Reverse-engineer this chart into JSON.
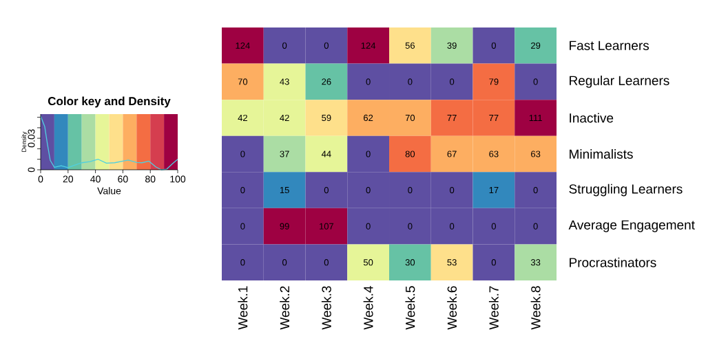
{
  "chart_data": [
    {
      "type": "line",
      "title": "Color key and Density",
      "xlabel": "Value",
      "ylabel": "Density",
      "xlim": [
        0,
        100
      ],
      "xticks": [
        0,
        20,
        40,
        60,
        80,
        100
      ],
      "ylim": [
        0,
        0.053
      ],
      "yticks": [
        {
          "value": 0,
          "label": "0"
        },
        {
          "value": 0.01,
          "label": null
        },
        {
          "value": 0.02,
          "label": null
        },
        {
          "value": 0.03,
          "label": "0.03"
        },
        {
          "value": 0.04,
          "label": null
        },
        {
          "value": 0.05,
          "label": null
        }
      ],
      "bands": [
        {
          "axis": "x",
          "from": 0,
          "to": 10,
          "color": "#5e4fa2"
        },
        {
          "axis": "x",
          "from": 10,
          "to": 20,
          "color": "#3288bd"
        },
        {
          "axis": "x",
          "from": 20,
          "to": 30,
          "color": "#66c2a5"
        },
        {
          "axis": "x",
          "from": 30,
          "to": 40,
          "color": "#abdda4"
        },
        {
          "axis": "x",
          "from": 40,
          "to": 50,
          "color": "#e6f598"
        },
        {
          "axis": "x",
          "from": 50,
          "to": 60,
          "color": "#fee08b"
        },
        {
          "axis": "x",
          "from": 60,
          "to": 70,
          "color": "#fdae61"
        },
        {
          "axis": "x",
          "from": 70,
          "to": 80,
          "color": "#f46d43"
        },
        {
          "axis": "x",
          "from": 80,
          "to": 90,
          "color": "#d53e4f"
        },
        {
          "axis": "x",
          "from": 90,
          "to": 100,
          "color": "#9e0142"
        }
      ],
      "series": [
        {
          "color": "#4fd0e0",
          "x": [
            0,
            3,
            5,
            7,
            10,
            15,
            20,
            25,
            30,
            36,
            42,
            48,
            54,
            60,
            64,
            70,
            74,
            79,
            84,
            88,
            92,
            96,
            100
          ],
          "values": [
            0.051,
            0.041,
            0.024,
            0.009,
            0.0024,
            0.0039,
            0.002,
            0.0045,
            0.0067,
            0.0078,
            0.01,
            0.0063,
            0.0067,
            0.0082,
            0.0093,
            0.007,
            0.0067,
            0.0082,
            0.0028,
            0,
            0.0006,
            0.0056,
            0.01
          ]
        }
      ]
    },
    {
      "type": "heatmap",
      "categories": [
        "Week.1",
        "Week.2",
        "Week.3",
        "Week.4",
        "Week.5",
        "Week.6",
        "Week.7",
        "Week.8"
      ],
      "y_categories": [
        "Fast Learners",
        "Regular Learners",
        "Inactive",
        "Minimalists",
        "Struggling Learners",
        "Average Engagement",
        "Procrastinators"
      ],
      "cells": [
        [
          124,
          0,
          0,
          124,
          56,
          39,
          0,
          29
        ],
        [
          70,
          43,
          26,
          0,
          0,
          0,
          79,
          0
        ],
        [
          42,
          42,
          59,
          62,
          70,
          77,
          77,
          111
        ],
        [
          0,
          37,
          44,
          0,
          80,
          67,
          63,
          63
        ],
        [
          0,
          15,
          0,
          0,
          0,
          0,
          17,
          0
        ],
        [
          0,
          99,
          107,
          0,
          0,
          0,
          0,
          0
        ],
        [
          0,
          0,
          0,
          50,
          30,
          53,
          0,
          33
        ]
      ],
      "data_labels": true
    }
  ]
}
